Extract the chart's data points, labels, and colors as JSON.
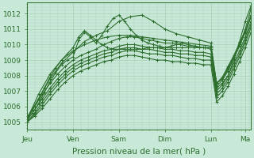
{
  "bg_color": "#c8e8d8",
  "plot_bg_color": "#c8e8d8",
  "outer_bg": "#b8d8c8",
  "line_color": "#2d6e2d",
  "marker": "+",
  "marker_size": 3,
  "linewidth": 0.8,
  "xlabel": "Pression niveau de la mer( hPa )",
  "xlabel_fontsize": 7.5,
  "ytick_labels": [
    "1005",
    "1006",
    "1007",
    "1008",
    "1009",
    "1010",
    "1011",
    "1012"
  ],
  "ytick_values": [
    1005,
    1006,
    1007,
    1008,
    1009,
    1010,
    1011,
    1012
  ],
  "ylim": [
    1004.5,
    1012.7
  ],
  "xtick_labels": [
    "Jeu",
    "Ven",
    "Sam",
    "Dim",
    "Lun",
    "Ma"
  ],
  "xtick_positions": [
    0,
    24,
    48,
    72,
    96,
    114
  ],
  "xlim": [
    0,
    117
  ],
  "grid_color": "#a0c8b0",
  "series": [
    {
      "x": [
        0,
        3,
        6,
        9,
        12,
        15,
        18,
        21,
        24,
        27,
        30,
        33,
        36,
        39,
        42,
        45,
        48,
        51,
        54,
        57,
        60,
        63,
        66,
        69,
        72,
        75,
        78,
        81,
        84,
        87,
        90,
        93,
        96,
        99,
        102,
        105,
        108,
        111,
        114,
        117
      ],
      "y": [
        1005.2,
        1005.6,
        1006.2,
        1006.9,
        1007.6,
        1008.2,
        1008.7,
        1009.0,
        1009.2,
        1010.3,
        1010.8,
        1010.5,
        1010.1,
        1010.6,
        1011.2,
        1011.7,
        1011.9,
        1011.5,
        1011.0,
        1010.6,
        1010.3,
        1010.1,
        1010.0,
        1009.9,
        1009.8,
        1009.9,
        1010.0,
        1010.1,
        1010.0,
        1009.9,
        1009.8,
        1009.8,
        1009.7,
        1007.2,
        1007.5,
        1008.0,
        1009.0,
        1010.2,
        1011.5,
        1012.5
      ]
    },
    {
      "x": [
        0,
        6,
        12,
        18,
        24,
        30,
        36,
        42,
        48,
        54,
        60,
        66,
        72,
        78,
        84,
        90,
        96,
        99,
        102,
        105,
        108,
        111,
        114,
        117
      ],
      "y": [
        1005.3,
        1006.5,
        1007.8,
        1008.8,
        1009.5,
        1010.2,
        1010.6,
        1010.9,
        1011.5,
        1011.8,
        1011.9,
        1011.5,
        1011.0,
        1010.7,
        1010.5,
        1010.3,
        1010.1,
        1007.5,
        1007.8,
        1008.5,
        1009.2,
        1010.0,
        1011.0,
        1012.3
      ]
    },
    {
      "x": [
        0,
        4,
        8,
        12,
        16,
        20,
        24,
        28,
        32,
        36,
        40,
        44,
        48,
        52,
        56,
        60,
        64,
        68,
        72,
        76,
        80,
        84,
        88,
        92,
        96,
        99,
        102,
        105,
        108,
        111,
        114,
        117
      ],
      "y": [
        1005.2,
        1006.0,
        1006.8,
        1007.5,
        1008.1,
        1008.6,
        1009.0,
        1009.3,
        1009.5,
        1009.7,
        1010.0,
        1010.2,
        1010.4,
        1010.5,
        1010.5,
        1010.4,
        1010.3,
        1010.2,
        1010.1,
        1010.1,
        1010.0,
        1009.9,
        1009.9,
        1009.8,
        1009.8,
        1007.3,
        1007.7,
        1008.3,
        1009.1,
        1009.9,
        1010.8,
        1011.8
      ]
    },
    {
      "x": [
        0,
        4,
        8,
        12,
        16,
        20,
        24,
        28,
        32,
        36,
        40,
        44,
        48,
        52,
        56,
        60,
        64,
        68,
        72,
        76,
        80,
        84,
        88,
        92,
        96,
        99,
        102,
        105,
        108,
        111,
        114,
        117
      ],
      "y": [
        1005.1,
        1005.8,
        1006.5,
        1007.2,
        1007.8,
        1008.3,
        1008.7,
        1009.0,
        1009.2,
        1009.4,
        1009.6,
        1009.7,
        1009.9,
        1010.0,
        1010.0,
        1009.9,
        1009.8,
        1009.8,
        1009.7,
        1009.7,
        1009.6,
        1009.6,
        1009.5,
        1009.5,
        1009.4,
        1007.0,
        1007.4,
        1008.0,
        1008.8,
        1009.6,
        1010.5,
        1011.5
      ]
    },
    {
      "x": [
        0,
        4,
        8,
        12,
        16,
        20,
        24,
        28,
        32,
        36,
        40,
        44,
        48,
        52,
        56,
        60,
        64,
        68,
        72,
        76,
        80,
        84,
        88,
        92,
        96,
        99,
        102,
        105,
        108,
        111,
        114,
        117
      ],
      "y": [
        1005.0,
        1005.6,
        1006.3,
        1007.0,
        1007.6,
        1008.1,
        1008.5,
        1008.8,
        1009.0,
        1009.2,
        1009.4,
        1009.5,
        1009.7,
        1009.8,
        1009.8,
        1009.7,
        1009.7,
        1009.6,
        1009.5,
        1009.5,
        1009.4,
        1009.4,
        1009.3,
        1009.3,
        1009.2,
        1006.8,
        1007.2,
        1007.8,
        1008.6,
        1009.4,
        1010.3,
        1011.3
      ]
    },
    {
      "x": [
        0,
        4,
        8,
        12,
        16,
        20,
        24,
        28,
        32,
        36,
        40,
        44,
        48,
        52,
        56,
        60,
        64,
        68,
        72,
        76,
        80,
        84,
        88,
        92,
        96,
        99,
        102,
        105,
        108,
        111,
        114,
        117
      ],
      "y": [
        1005.0,
        1005.5,
        1006.1,
        1006.8,
        1007.4,
        1007.9,
        1008.3,
        1008.6,
        1008.8,
        1009.0,
        1009.2,
        1009.3,
        1009.5,
        1009.6,
        1009.6,
        1009.5,
        1009.4,
        1009.4,
        1009.3,
        1009.3,
        1009.2,
        1009.1,
        1009.1,
        1009.0,
        1009.0,
        1006.6,
        1007.0,
        1007.6,
        1008.4,
        1009.2,
        1010.1,
        1011.1
      ]
    },
    {
      "x": [
        0,
        4,
        8,
        12,
        16,
        20,
        24,
        28,
        32,
        36,
        40,
        44,
        48,
        52,
        56,
        60,
        64,
        68,
        72,
        76,
        80,
        84,
        88,
        92,
        96,
        99,
        102,
        105,
        108,
        111,
        114,
        117
      ],
      "y": [
        1005.0,
        1005.4,
        1005.9,
        1006.5,
        1007.1,
        1007.6,
        1008.0,
        1008.3,
        1008.5,
        1008.7,
        1008.9,
        1009.0,
        1009.2,
        1009.3,
        1009.3,
        1009.2,
        1009.1,
        1009.0,
        1009.0,
        1008.9,
        1008.9,
        1008.8,
        1008.8,
        1008.7,
        1008.7,
        1006.3,
        1006.7,
        1007.3,
        1008.1,
        1008.9,
        1009.8,
        1010.8
      ]
    },
    {
      "x": [
        0,
        6,
        12,
        18,
        24,
        30,
        36,
        42,
        48,
        54,
        60,
        66,
        72,
        78,
        84,
        90,
        96,
        99,
        102,
        105,
        108,
        111,
        114,
        117
      ],
      "y": [
        1005.2,
        1006.8,
        1008.1,
        1009.0,
        1009.6,
        1010.0,
        1010.3,
        1010.5,
        1010.6,
        1010.6,
        1010.5,
        1010.4,
        1010.3,
        1010.2,
        1010.1,
        1010.0,
        1009.9,
        1007.5,
        1007.9,
        1008.6,
        1009.3,
        1010.1,
        1010.9,
        1011.9
      ]
    },
    {
      "x": [
        0,
        3,
        6,
        9,
        12,
        15,
        18,
        21,
        24,
        27,
        30,
        33,
        36,
        39,
        42,
        45,
        48,
        51,
        54,
        57,
        60,
        63,
        66,
        69,
        72,
        75,
        78,
        81,
        84,
        87,
        90,
        93,
        96,
        99,
        102,
        105,
        108,
        111,
        114,
        117
      ],
      "y": [
        1005.3,
        1005.8,
        1006.5,
        1007.2,
        1007.9,
        1008.5,
        1009.0,
        1009.4,
        1009.8,
        1010.5,
        1010.9,
        1010.6,
        1010.3,
        1010.0,
        1009.8,
        1009.7,
        1009.7,
        1009.7,
        1009.7,
        1009.7,
        1009.7,
        1009.8,
        1009.8,
        1009.8,
        1009.8,
        1009.8,
        1009.8,
        1009.8,
        1009.8,
        1009.8,
        1009.8,
        1009.8,
        1009.8,
        1007.5,
        1007.8,
        1008.4,
        1009.2,
        1010.0,
        1010.8,
        1011.8
      ]
    }
  ]
}
